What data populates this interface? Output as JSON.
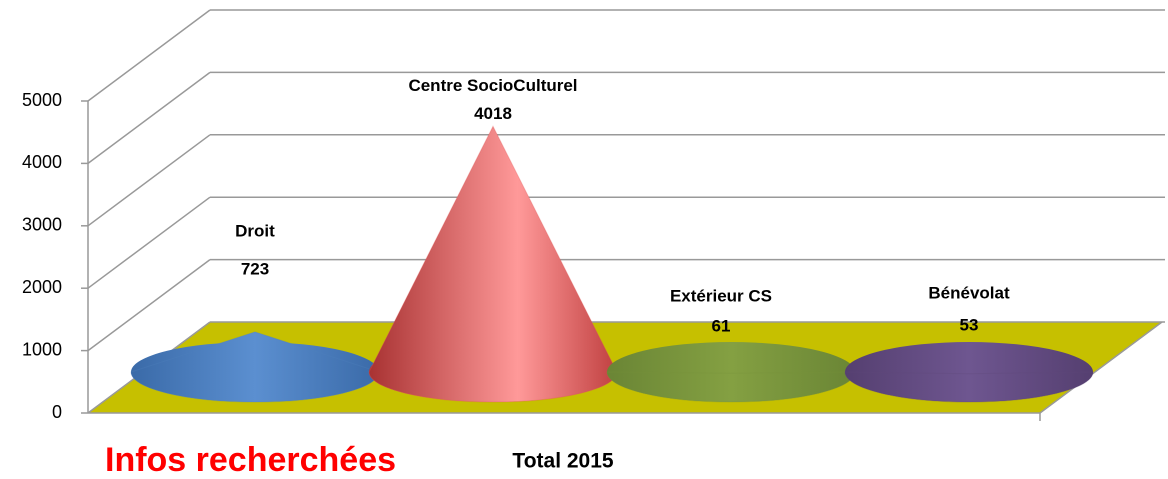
{
  "chart_data": {
    "type": "cone",
    "title": "Infos recherchées",
    "x_label": "Total 2015",
    "categories": [
      "Droit",
      "Centre SocioCulturel",
      "Extérieur CS",
      "Bénévolat"
    ],
    "values": [
      723,
      4018,
      61,
      53
    ],
    "colors": [
      "#4f81bd",
      "#e05555",
      "#77933c",
      "#604a7b"
    ],
    "floor_color": "#c6c000",
    "ylim": [
      0,
      5000
    ],
    "yticks": [
      0,
      1000,
      2000,
      3000,
      4000,
      5000
    ],
    "grid": true
  }
}
